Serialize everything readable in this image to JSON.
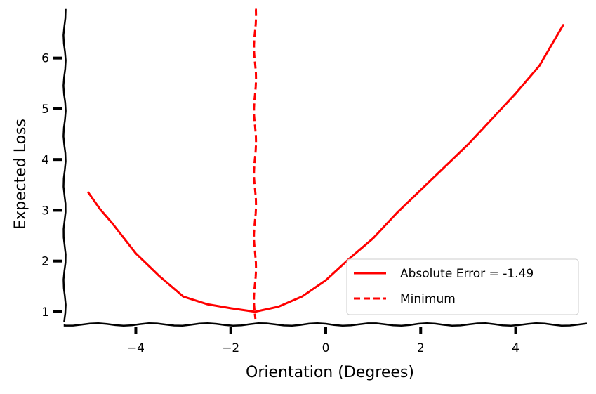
{
  "chart_data": {
    "type": "line",
    "title": "",
    "xlabel": "Orientation (Degrees)",
    "ylabel": "Expected Loss",
    "xlim": [
      -5.5,
      5.5
    ],
    "ylim": [
      0.75,
      6.95
    ],
    "xticks": [
      -4,
      -2,
      0,
      2,
      4
    ],
    "yticks": [
      1,
      2,
      3,
      4,
      5,
      6
    ],
    "grid": false,
    "legend_position": "lower-right",
    "series": [
      {
        "name": "Absolute Error = -1.49",
        "style": "solid",
        "color": "#ff0000",
        "x": [
          -5.0,
          -4.75,
          -4.5,
          -4.0,
          -3.5,
          -3.0,
          -2.5,
          -2.0,
          -1.49,
          -1.0,
          -0.5,
          0.0,
          0.5,
          1.0,
          1.5,
          2.0,
          2.5,
          3.0,
          3.5,
          4.0,
          4.5,
          5.0
        ],
        "y": [
          3.35,
          3.02,
          2.75,
          2.15,
          1.7,
          1.3,
          1.15,
          1.07,
          1.0,
          1.1,
          1.3,
          1.62,
          2.05,
          2.45,
          2.95,
          3.4,
          3.85,
          4.3,
          4.8,
          5.3,
          5.85,
          6.65
        ]
      }
    ],
    "vlines": [
      {
        "name": "Minimum",
        "x": -1.49,
        "style": "dashed",
        "color": "#ff0000"
      }
    ]
  }
}
